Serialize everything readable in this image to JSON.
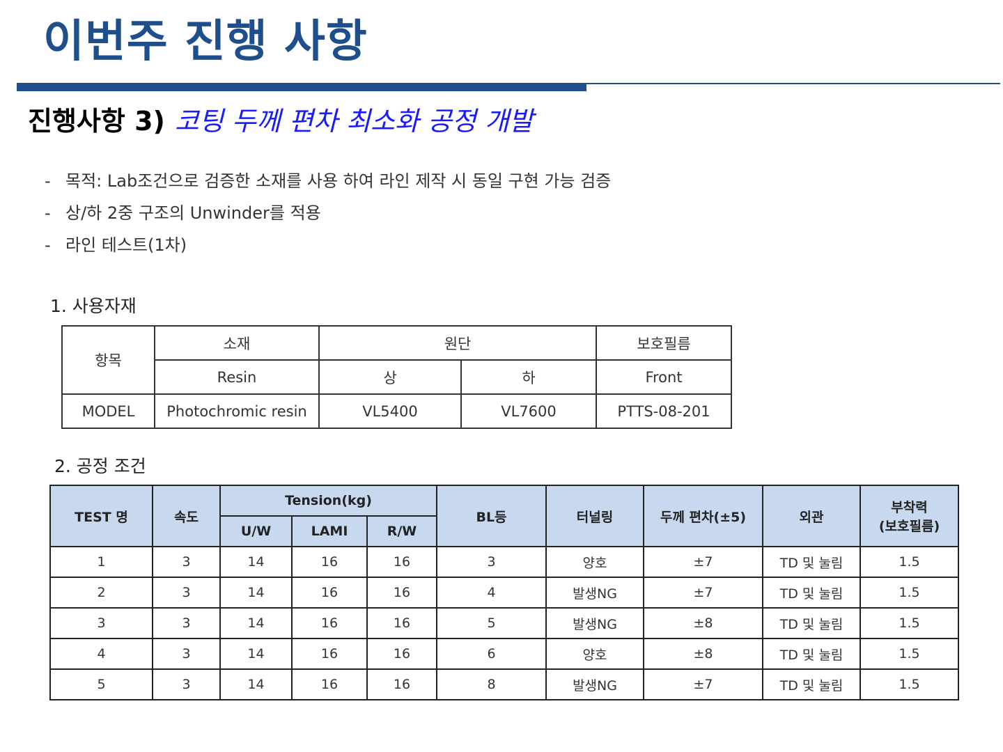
{
  "title": "이번주 진행 사항",
  "subtitle": {
    "lead": "진행사항 3)",
    "topic": "코팅 두께 편차 최소화 공정 개발"
  },
  "bullets": [
    "목적: Lab조건으로 검증한 소재를 사용 하여 라인 제작 시 동일 구현 가능 검증",
    "상/하 2중 구조의 Unwinder를 적용",
    "라인 테스트(1차)"
  ],
  "materials": {
    "label": "1. 사용자재",
    "header": {
      "item": "항목",
      "material": "소재",
      "fabric": "원단",
      "film": "보호필름",
      "resin": "Resin",
      "upper": "상",
      "lower": "하",
      "front": "Front"
    },
    "row": {
      "label": "MODEL",
      "resin": "Photochromic resin",
      "upper": "VL5400",
      "lower": "VL7600",
      "front": "PTTS-08-201"
    }
  },
  "process": {
    "label": "2. 공정 조건",
    "header": {
      "test": "TEST 명",
      "speed": "속도",
      "tension": "Tension(kg)",
      "uw": "U/W",
      "lami": "LAMI",
      "rw": "R/W",
      "bl": "BL등",
      "tunneling": "터널링",
      "thickness": "두께 편차(±5)",
      "appearance": "외관",
      "adhesion_line1": "부착력",
      "adhesion_line2": "(보호필름)"
    },
    "rows": [
      {
        "test": "1",
        "speed": "3",
        "uw": "14",
        "lami": "16",
        "rw": "16",
        "bl": "3",
        "tunneling": "양호",
        "thickness": "±7",
        "appearance": "TD 및 눌림",
        "adhesion": "1.5"
      },
      {
        "test": "2",
        "speed": "3",
        "uw": "14",
        "lami": "16",
        "rw": "16",
        "bl": "4",
        "tunneling": "발생NG",
        "thickness": "±7",
        "appearance": "TD 및 눌림",
        "adhesion": "1.5"
      },
      {
        "test": "3",
        "speed": "3",
        "uw": "14",
        "lami": "16",
        "rw": "16",
        "bl": "5",
        "tunneling": "발생NG",
        "thickness": "±8",
        "appearance": "TD 및 눌림",
        "adhesion": "1.5"
      },
      {
        "test": "4",
        "speed": "3",
        "uw": "14",
        "lami": "16",
        "rw": "16",
        "bl": "6",
        "tunneling": "양호",
        "thickness": "±8",
        "appearance": "TD 및 눌림",
        "adhesion": "1.5"
      },
      {
        "test": "5",
        "speed": "3",
        "uw": "14",
        "lami": "16",
        "rw": "16",
        "bl": "8",
        "tunneling": "발생NG",
        "thickness": "±7",
        "appearance": "TD 및 눌림",
        "adhesion": "1.5"
      }
    ]
  },
  "colors": {
    "accent": "#1f4e8c",
    "topic": "#1a1aff",
    "header_fill": "#c8d8ee"
  }
}
